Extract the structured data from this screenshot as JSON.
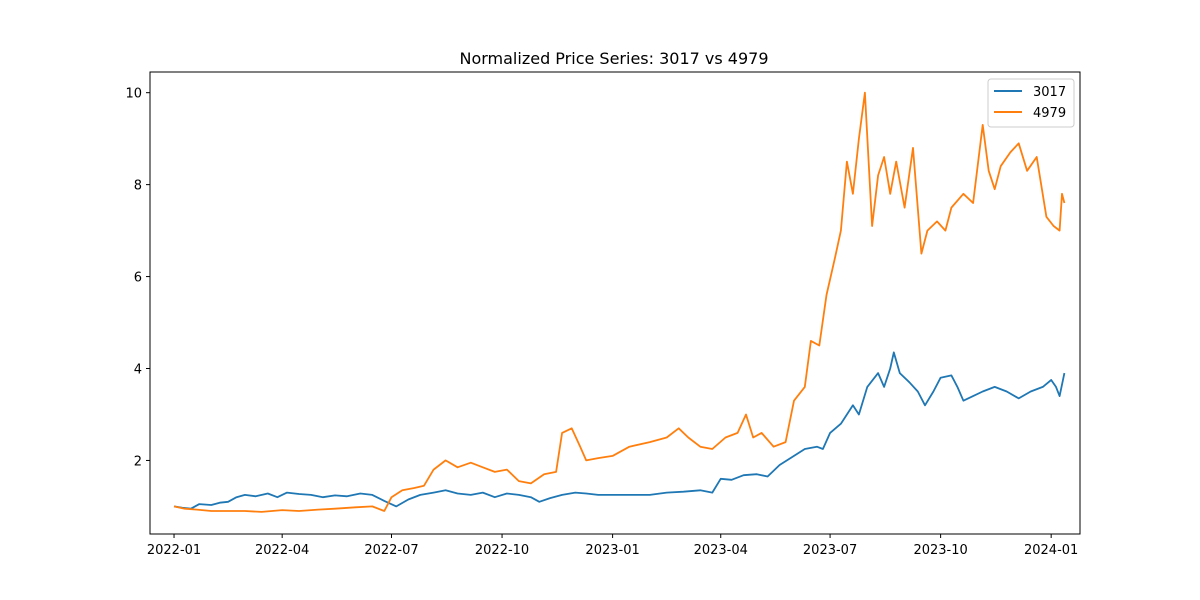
{
  "chart_data": {
    "type": "line",
    "title": "Normalized Price Series: 3017 vs 4979",
    "xlabel": "",
    "ylabel": "",
    "x_ticks": [
      "2022-01",
      "2022-04",
      "2022-07",
      "2022-10",
      "2023-01",
      "2023-04",
      "2023-07",
      "2023-10",
      "2024-01"
    ],
    "x_range": [
      "2021-12-12",
      "2024-01-25"
    ],
    "y_ticks": [
      2,
      4,
      6,
      8,
      10
    ],
    "ylim": [
      0.4,
      10.45
    ],
    "grid": false,
    "legend_position": "top-right",
    "series": [
      {
        "name": "3017",
        "color": "#1f77b4",
        "points": [
          [
            "2022-01-01",
            1.0
          ],
          [
            "2022-01-08",
            0.97
          ],
          [
            "2022-01-15",
            0.95
          ],
          [
            "2022-01-22",
            1.05
          ],
          [
            "2022-02-01",
            1.03
          ],
          [
            "2022-02-08",
            1.08
          ],
          [
            "2022-02-15",
            1.1
          ],
          [
            "2022-02-22",
            1.2
          ],
          [
            "2022-03-01",
            1.25
          ],
          [
            "2022-03-10",
            1.22
          ],
          [
            "2022-03-20",
            1.28
          ],
          [
            "2022-03-28",
            1.2
          ],
          [
            "2022-04-05",
            1.3
          ],
          [
            "2022-04-15",
            1.27
          ],
          [
            "2022-04-25",
            1.25
          ],
          [
            "2022-05-05",
            1.2
          ],
          [
            "2022-05-15",
            1.24
          ],
          [
            "2022-05-25",
            1.22
          ],
          [
            "2022-06-05",
            1.28
          ],
          [
            "2022-06-15",
            1.25
          ],
          [
            "2022-06-25",
            1.12
          ],
          [
            "2022-07-05",
            1.0
          ],
          [
            "2022-07-15",
            1.15
          ],
          [
            "2022-07-25",
            1.25
          ],
          [
            "2022-08-05",
            1.3
          ],
          [
            "2022-08-15",
            1.35
          ],
          [
            "2022-08-25",
            1.28
          ],
          [
            "2022-09-05",
            1.25
          ],
          [
            "2022-09-15",
            1.3
          ],
          [
            "2022-09-25",
            1.2
          ],
          [
            "2022-10-05",
            1.28
          ],
          [
            "2022-10-15",
            1.25
          ],
          [
            "2022-10-25",
            1.2
          ],
          [
            "2022-11-01",
            1.1
          ],
          [
            "2022-11-10",
            1.18
          ],
          [
            "2022-11-20",
            1.25
          ],
          [
            "2022-12-01",
            1.3
          ],
          [
            "2022-12-10",
            1.28
          ],
          [
            "2022-12-20",
            1.25
          ],
          [
            "2023-01-01",
            1.25
          ],
          [
            "2023-01-15",
            1.25
          ],
          [
            "2023-02-01",
            1.25
          ],
          [
            "2023-02-15",
            1.3
          ],
          [
            "2023-03-01",
            1.32
          ],
          [
            "2023-03-15",
            1.35
          ],
          [
            "2023-03-25",
            1.3
          ],
          [
            "2023-04-01",
            1.6
          ],
          [
            "2023-04-10",
            1.58
          ],
          [
            "2023-04-20",
            1.68
          ],
          [
            "2023-05-01",
            1.7
          ],
          [
            "2023-05-10",
            1.65
          ],
          [
            "2023-05-20",
            1.9
          ],
          [
            "2023-06-01",
            2.1
          ],
          [
            "2023-06-10",
            2.25
          ],
          [
            "2023-06-20",
            2.3
          ],
          [
            "2023-06-25",
            2.25
          ],
          [
            "2023-07-01",
            2.6
          ],
          [
            "2023-07-10",
            2.8
          ],
          [
            "2023-07-20",
            3.2
          ],
          [
            "2023-07-25",
            3.0
          ],
          [
            "2023-08-01",
            3.6
          ],
          [
            "2023-08-10",
            3.9
          ],
          [
            "2023-08-15",
            3.6
          ],
          [
            "2023-08-20",
            4.0
          ],
          [
            "2023-08-23",
            4.35
          ],
          [
            "2023-08-28",
            3.9
          ],
          [
            "2023-09-05",
            3.7
          ],
          [
            "2023-09-12",
            3.5
          ],
          [
            "2023-09-18",
            3.2
          ],
          [
            "2023-09-25",
            3.5
          ],
          [
            "2023-10-01",
            3.8
          ],
          [
            "2023-10-10",
            3.85
          ],
          [
            "2023-10-15",
            3.6
          ],
          [
            "2023-10-20",
            3.3
          ],
          [
            "2023-10-28",
            3.4
          ],
          [
            "2023-11-05",
            3.5
          ],
          [
            "2023-11-15",
            3.6
          ],
          [
            "2023-11-25",
            3.5
          ],
          [
            "2023-12-05",
            3.35
          ],
          [
            "2023-12-15",
            3.5
          ],
          [
            "2023-12-25",
            3.6
          ],
          [
            "2024-01-01",
            3.75
          ],
          [
            "2024-01-05",
            3.6
          ],
          [
            "2024-01-08",
            3.4
          ],
          [
            "2024-01-12",
            3.9
          ]
        ]
      },
      {
        "name": "4979",
        "color": "#ff7f0e",
        "points": [
          [
            "2022-01-01",
            1.0
          ],
          [
            "2022-01-10",
            0.95
          ],
          [
            "2022-01-20",
            0.93
          ],
          [
            "2022-02-01",
            0.9
          ],
          [
            "2022-02-15",
            0.9
          ],
          [
            "2022-03-01",
            0.9
          ],
          [
            "2022-03-15",
            0.88
          ],
          [
            "2022-04-01",
            0.92
          ],
          [
            "2022-04-15",
            0.9
          ],
          [
            "2022-05-01",
            0.93
          ],
          [
            "2022-05-15",
            0.95
          ],
          [
            "2022-06-01",
            0.98
          ],
          [
            "2022-06-15",
            1.0
          ],
          [
            "2022-06-25",
            0.9
          ],
          [
            "2022-07-01",
            1.2
          ],
          [
            "2022-07-10",
            1.35
          ],
          [
            "2022-07-20",
            1.4
          ],
          [
            "2022-07-28",
            1.45
          ],
          [
            "2022-08-05",
            1.8
          ],
          [
            "2022-08-15",
            2.0
          ],
          [
            "2022-08-25",
            1.85
          ],
          [
            "2022-09-05",
            1.95
          ],
          [
            "2022-09-15",
            1.85
          ],
          [
            "2022-09-25",
            1.75
          ],
          [
            "2022-10-05",
            1.8
          ],
          [
            "2022-10-15",
            1.55
          ],
          [
            "2022-10-25",
            1.5
          ],
          [
            "2022-11-05",
            1.7
          ],
          [
            "2022-11-15",
            1.75
          ],
          [
            "2022-11-20",
            2.6
          ],
          [
            "2022-11-28",
            2.7
          ],
          [
            "2022-12-05",
            2.3
          ],
          [
            "2022-12-10",
            2.0
          ],
          [
            "2022-12-20",
            2.05
          ],
          [
            "2023-01-01",
            2.1
          ],
          [
            "2023-01-15",
            2.3
          ],
          [
            "2023-02-01",
            2.4
          ],
          [
            "2023-02-15",
            2.5
          ],
          [
            "2023-02-25",
            2.7
          ],
          [
            "2023-03-05",
            2.5
          ],
          [
            "2023-03-15",
            2.3
          ],
          [
            "2023-03-25",
            2.25
          ],
          [
            "2023-04-05",
            2.5
          ],
          [
            "2023-04-15",
            2.6
          ],
          [
            "2023-04-22",
            3.0
          ],
          [
            "2023-04-28",
            2.5
          ],
          [
            "2023-05-05",
            2.6
          ],
          [
            "2023-05-15",
            2.3
          ],
          [
            "2023-05-25",
            2.4
          ],
          [
            "2023-06-01",
            3.3
          ],
          [
            "2023-06-10",
            3.6
          ],
          [
            "2023-06-15",
            4.6
          ],
          [
            "2023-06-22",
            4.5
          ],
          [
            "2023-06-28",
            5.6
          ],
          [
            "2023-07-05",
            6.4
          ],
          [
            "2023-07-10",
            7.0
          ],
          [
            "2023-07-15",
            8.5
          ],
          [
            "2023-07-20",
            7.8
          ],
          [
            "2023-07-25",
            9.0
          ],
          [
            "2023-07-30",
            10.0
          ],
          [
            "2023-08-05",
            7.1
          ],
          [
            "2023-08-10",
            8.2
          ],
          [
            "2023-08-15",
            8.6
          ],
          [
            "2023-08-20",
            7.8
          ],
          [
            "2023-08-25",
            8.5
          ],
          [
            "2023-09-01",
            7.5
          ],
          [
            "2023-09-08",
            8.8
          ],
          [
            "2023-09-15",
            6.5
          ],
          [
            "2023-09-20",
            7.0
          ],
          [
            "2023-09-28",
            7.2
          ],
          [
            "2023-10-05",
            7.0
          ],
          [
            "2023-10-10",
            7.5
          ],
          [
            "2023-10-20",
            7.8
          ],
          [
            "2023-10-28",
            7.6
          ],
          [
            "2023-11-05",
            9.3
          ],
          [
            "2023-11-10",
            8.3
          ],
          [
            "2023-11-15",
            7.9
          ],
          [
            "2023-11-20",
            8.4
          ],
          [
            "2023-11-28",
            8.7
          ],
          [
            "2023-12-05",
            8.9
          ],
          [
            "2023-12-12",
            8.3
          ],
          [
            "2023-12-20",
            8.6
          ],
          [
            "2023-12-28",
            7.3
          ],
          [
            "2024-01-03",
            7.1
          ],
          [
            "2024-01-08",
            7.0
          ],
          [
            "2024-01-10",
            7.8
          ],
          [
            "2024-01-12",
            7.6
          ]
        ]
      }
    ]
  }
}
